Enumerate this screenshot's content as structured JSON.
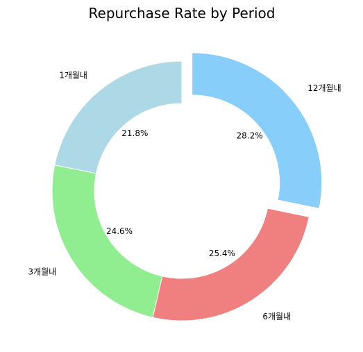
{
  "chart_data": {
    "type": "pie",
    "style": "donut",
    "title": "Repurchase Rate by Period",
    "categories": [
      "12개월내",
      "6개월내",
      "3개월내",
      "1개월내"
    ],
    "values": [
      28.2,
      25.4,
      24.6,
      21.8
    ],
    "value_labels": [
      "28.2%",
      "25.4%",
      "24.6%",
      "21.8%"
    ],
    "colors": [
      "#87CEFA",
      "#F08080",
      "#90EE90",
      "#ADD8E6"
    ],
    "exploded": [
      "12개월내"
    ],
    "start_angle_deg": 90,
    "direction": "clockwise",
    "legend": "none"
  }
}
